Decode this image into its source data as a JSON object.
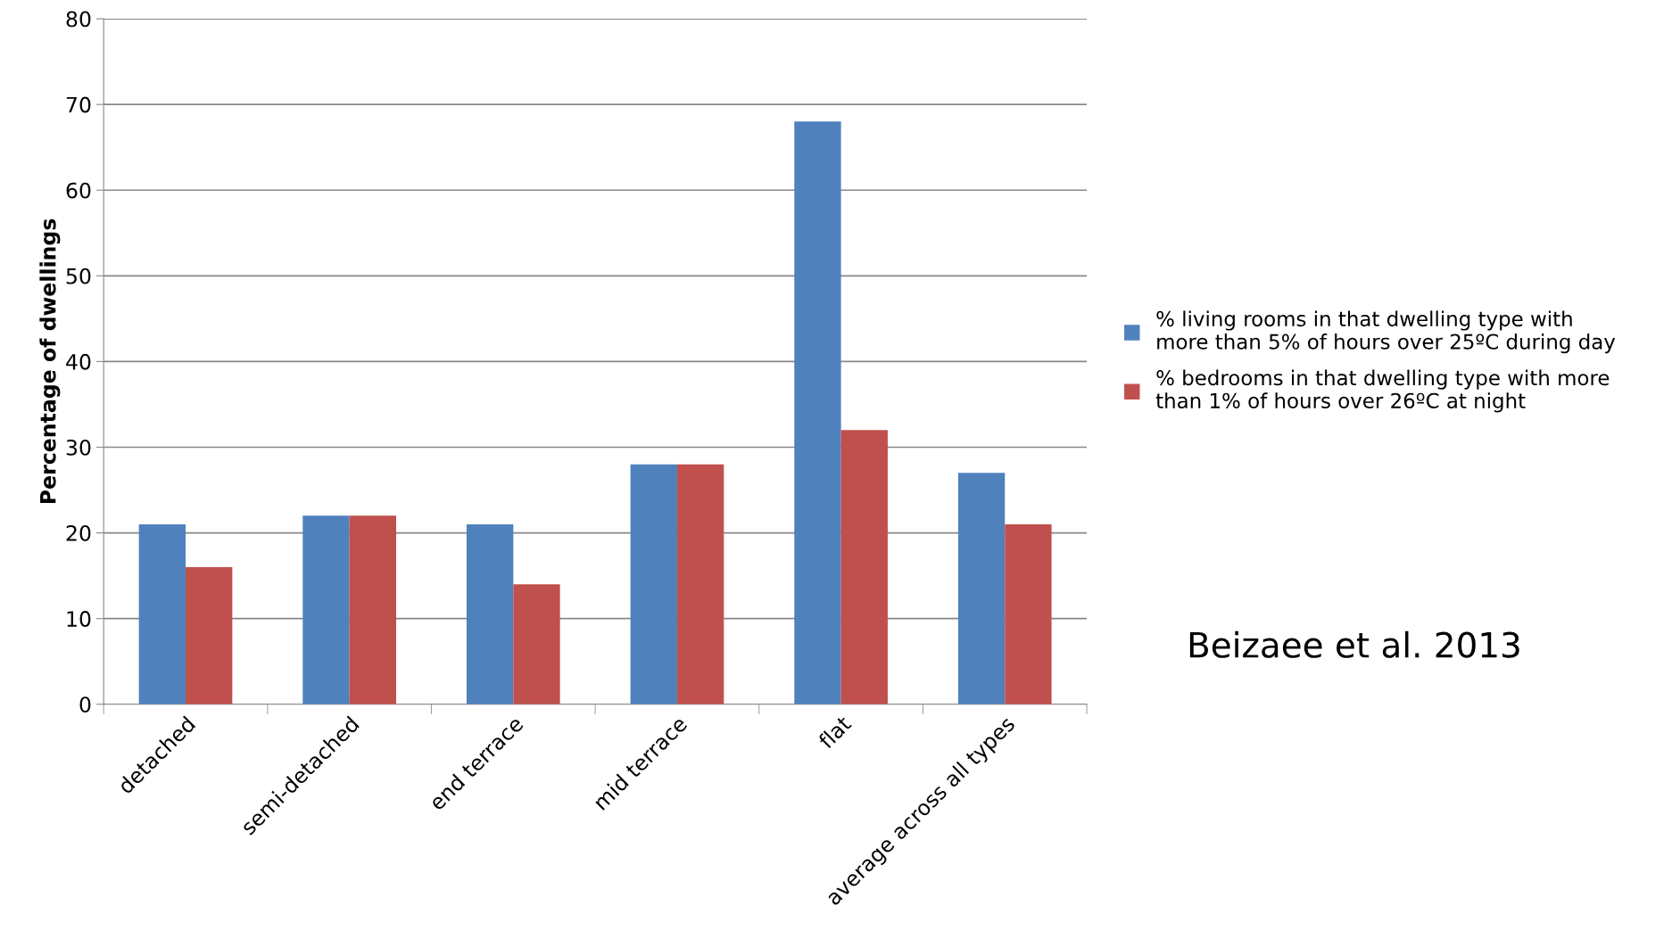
{
  "chart_data": {
    "type": "bar",
    "ylabel": "Percentage of dwellings",
    "categories": [
      "detached",
      "semi-detached",
      "end terrace",
      "mid terrace",
      "flat",
      "average across all types"
    ],
    "series": [
      {
        "name": "% living rooms in that dwelling type with more than 5% of hours over 25ºC during day",
        "color": "#4f81bd",
        "values": [
          21,
          22,
          21,
          28,
          68,
          27
        ]
      },
      {
        "name": "% bedrooms in that dwelling type with more than 1% of hours over 26ºC at night",
        "color": "#c0504d",
        "values": [
          16,
          22,
          14,
          28,
          32,
          21
        ]
      }
    ],
    "ylim": [
      0,
      80
    ],
    "yticks": [
      0,
      10,
      20,
      30,
      40,
      50,
      60,
      70,
      80
    ],
    "grid": "y",
    "legend": "right",
    "annotations": [
      "Beizaee et al. 2013"
    ]
  }
}
